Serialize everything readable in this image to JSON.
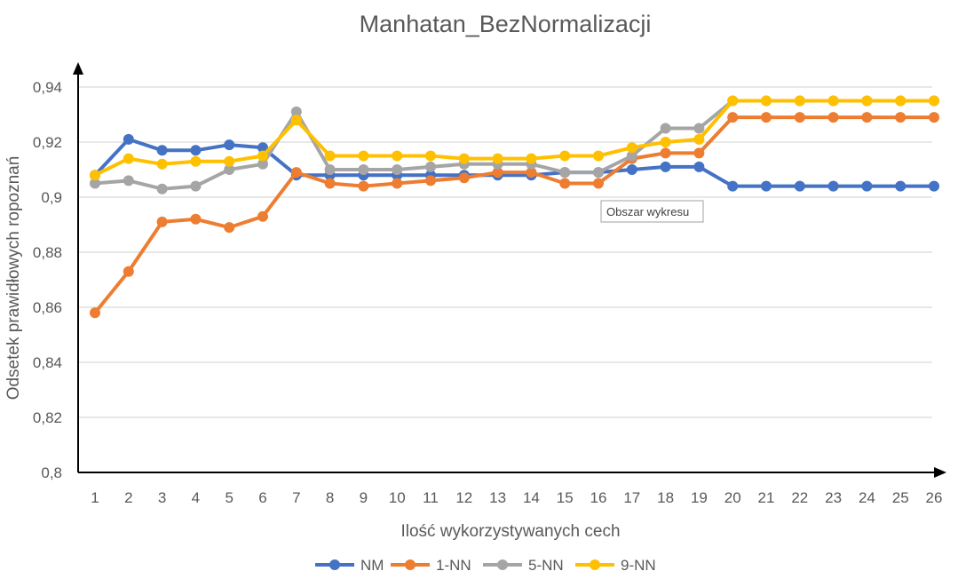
{
  "chart_data": {
    "type": "line",
    "title": "Manhatan_BezNormalizacji",
    "xlabel": "Ilość wykorzystywanych cech",
    "ylabel": "Odsetek prawidłowych ropoznań",
    "x": [
      1,
      2,
      3,
      4,
      5,
      6,
      7,
      8,
      9,
      10,
      11,
      12,
      13,
      14,
      15,
      16,
      17,
      18,
      19,
      20,
      21,
      22,
      23,
      24,
      25,
      26
    ],
    "ylim": [
      0.8,
      0.94
    ],
    "yticks": [
      "0,8",
      "0,82",
      "0,84",
      "0,86",
      "0,88",
      "0,9",
      "0,92",
      "0,94"
    ],
    "grid": true,
    "legend": "bottom",
    "tooltip": "Obszar wykresu",
    "series": [
      {
        "name": "NM",
        "color": "#4472C4",
        "values": [
          0.908,
          0.921,
          0.917,
          0.917,
          0.919,
          0.918,
          0.908,
          0.908,
          0.908,
          0.908,
          0.908,
          0.908,
          0.908,
          0.908,
          0.909,
          0.909,
          0.91,
          0.911,
          0.911,
          0.904,
          0.904,
          0.904,
          0.904,
          0.904,
          0.904,
          0.904
        ]
      },
      {
        "name": "1-NN",
        "color": "#ED7D31",
        "values": [
          0.858,
          0.873,
          0.891,
          0.892,
          0.889,
          0.893,
          0.909,
          0.905,
          0.904,
          0.905,
          0.906,
          0.907,
          0.909,
          0.909,
          0.905,
          0.905,
          0.914,
          0.916,
          0.916,
          0.929,
          0.929,
          0.929,
          0.929,
          0.929,
          0.929,
          0.929
        ]
      },
      {
        "name": "5-NN",
        "color": "#A5A5A5",
        "values": [
          0.905,
          0.906,
          0.903,
          0.904,
          0.91,
          0.912,
          0.931,
          0.91,
          0.91,
          0.91,
          0.911,
          0.912,
          0.912,
          0.912,
          0.909,
          0.909,
          0.915,
          0.925,
          0.925,
          0.935,
          0.935,
          0.935,
          0.935,
          0.935,
          0.935,
          0.935
        ]
      },
      {
        "name": "9-NN",
        "color": "#FFC000",
        "values": [
          0.908,
          0.914,
          0.912,
          0.913,
          0.913,
          0.915,
          0.928,
          0.915,
          0.915,
          0.915,
          0.915,
          0.914,
          0.914,
          0.914,
          0.915,
          0.915,
          0.918,
          0.92,
          0.921,
          0.935,
          0.935,
          0.935,
          0.935,
          0.935,
          0.935,
          0.935
        ]
      }
    ]
  }
}
